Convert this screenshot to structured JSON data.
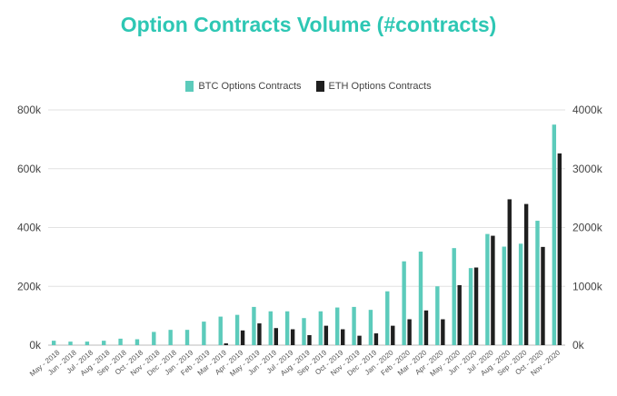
{
  "chart_data": {
    "type": "bar",
    "title": "Option Contracts Volume (#contracts)",
    "legend_position": "top-center",
    "grid": true,
    "categories": [
      "May - 2018",
      "Jun - 2018",
      "Jul - 2018",
      "Aug - 2018",
      "Sep - 2018",
      "Oct - 2018",
      "Nov - 2018",
      "Dec - 2018",
      "Jan - 2019",
      "Feb - 2019",
      "Mar - 2019",
      "Apr - 2019",
      "May - 2019",
      "Jun - 2019",
      "Jul - 2019",
      "Aug - 2019",
      "Sep - 2019",
      "Oct - 2019",
      "Nov - 2019",
      "Dec - 2019",
      "Jan - 2020",
      "Feb - 2020",
      "Mar - 2020",
      "Apr - 2020",
      "May - 2020",
      "Jun - 2020",
      "Jul - 2020",
      "Aug - 2020",
      "Sep - 2020",
      "Oct - 2020",
      "Nov - 2020"
    ],
    "series": [
      {
        "name": "BTC Options Contracts",
        "color": "#5ccbbb",
        "axis": "left",
        "values": [
          15000,
          12000,
          12000,
          15000,
          22000,
          20000,
          45000,
          52000,
          52000,
          80000,
          97000,
          103000,
          130000,
          115000,
          115000,
          92000,
          115000,
          128000,
          130000,
          120000,
          183000,
          285000,
          318000,
          200000,
          330000,
          262000,
          378000,
          335000,
          345000,
          423000,
          750000
        ]
      },
      {
        "name": "ETH Options Contracts",
        "color": "#1f1f1f",
        "axis": "right",
        "values": [
          0,
          0,
          0,
          0,
          0,
          0,
          0,
          0,
          0,
          0,
          30000,
          250000,
          370000,
          290000,
          270000,
          170000,
          330000,
          270000,
          160000,
          200000,
          330000,
          440000,
          590000,
          440000,
          1020000,
          1320000,
          1860000,
          2480000,
          2400000,
          1670000,
          3260000
        ]
      }
    ],
    "y_left": {
      "min": 0,
      "max": 800000,
      "ticks": [
        "0k",
        "200k",
        "400k",
        "600k",
        "800k"
      ]
    },
    "y_right": {
      "min": 0,
      "max": 4000000,
      "ticks": [
        "0k",
        "1000k",
        "2000k",
        "3000k",
        "4000k"
      ]
    }
  }
}
